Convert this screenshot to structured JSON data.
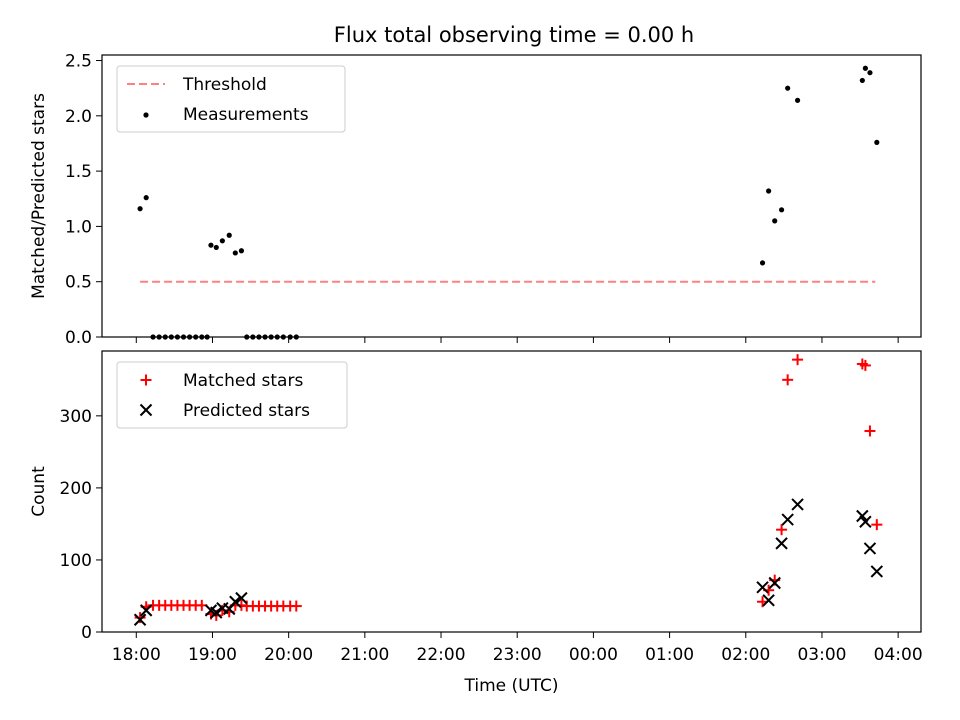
{
  "title": "Flux total observing time = 0.00 h",
  "chart_data": [
    {
      "type": "scatter",
      "panel": "top",
      "title": "Flux total observing time = 0.00 h",
      "xlabel": "",
      "ylabel": "Matched/Predicted stars",
      "xlim": [
        17.55,
        28.3
      ],
      "ylim": [
        0,
        2.55
      ],
      "yticks": [
        0.0,
        0.5,
        1.0,
        1.5,
        2.0,
        2.5
      ],
      "ytick_labels": [
        "0.0",
        "0.5",
        "1.0",
        "1.5",
        "2.0",
        "2.5"
      ],
      "legend_position": "top-left",
      "legend": [
        "Threshold",
        "Measurements"
      ],
      "series": [
        {
          "name": "Threshold",
          "kind": "dashed-line",
          "color": "#ff8080",
          "x": [
            18.05,
            27.7
          ],
          "y": [
            0.5,
            0.5
          ]
        },
        {
          "name": "Measurements",
          "kind": "points",
          "color": "#000000",
          "x": [
            18.05,
            18.13,
            18.22,
            18.3,
            18.38,
            18.46,
            18.54,
            18.62,
            18.7,
            18.78,
            18.86,
            18.93,
            18.98,
            19.05,
            19.13,
            19.22,
            19.3,
            19.38,
            19.45,
            19.53,
            19.61,
            19.69,
            19.77,
            19.85,
            19.93,
            20.02,
            20.1,
            26.22,
            26.3,
            26.38,
            26.47,
            26.55,
            26.68,
            27.53,
            27.57,
            27.63,
            27.72
          ],
          "y": [
            1.16,
            1.26,
            0.0,
            0.0,
            0.0,
            0.0,
            0.0,
            0.0,
            0.0,
            0.0,
            0.0,
            0.0,
            0.83,
            0.81,
            0.87,
            0.92,
            0.76,
            0.78,
            0.0,
            0.0,
            0.0,
            0.0,
            0.0,
            0.0,
            0.0,
            0.0,
            0.0,
            0.67,
            1.32,
            1.05,
            1.15,
            2.25,
            2.14,
            2.32,
            2.43,
            2.39,
            1.76
          ]
        }
      ]
    },
    {
      "type": "scatter",
      "panel": "bottom",
      "xlabel": "Time (UTC)",
      "ylabel": "Count",
      "xlim": [
        17.55,
        28.3
      ],
      "ylim": [
        0,
        390
      ],
      "xticks": [
        18,
        19,
        20,
        21,
        22,
        23,
        24,
        25,
        26,
        27,
        28
      ],
      "xtick_labels": [
        "18:00",
        "19:00",
        "20:00",
        "21:00",
        "22:00",
        "23:00",
        "00:00",
        "01:00",
        "02:00",
        "03:00",
        "04:00"
      ],
      "yticks": [
        0,
        100,
        200,
        300
      ],
      "ytick_labels": [
        "0",
        "100",
        "200",
        "300"
      ],
      "legend_position": "top-left",
      "legend": [
        "Matched stars",
        "Predicted stars"
      ],
      "series": [
        {
          "name": "Matched stars",
          "marker": "plus",
          "color": "#ff0000",
          "x": [
            18.05,
            18.13,
            18.22,
            18.3,
            18.38,
            18.46,
            18.54,
            18.62,
            18.7,
            18.78,
            18.86,
            18.98,
            19.05,
            19.13,
            19.22,
            19.3,
            19.38,
            19.45,
            19.53,
            19.61,
            19.69,
            19.77,
            19.85,
            19.93,
            20.02,
            20.1,
            26.22,
            26.3,
            26.38,
            26.47,
            26.55,
            26.68,
            27.53,
            27.57,
            27.63,
            27.72
          ],
          "y": [
            20,
            35,
            37,
            37,
            37,
            37,
            37,
            37,
            37,
            37,
            37,
            25,
            23,
            30,
            28,
            37,
            37,
            36,
            36,
            36,
            36,
            36,
            36,
            36,
            36,
            36,
            42,
            58,
            72,
            142,
            350,
            378,
            372,
            370,
            279,
            149
          ]
        },
        {
          "name": "Predicted stars",
          "marker": "x",
          "color": "#000000",
          "x": [
            18.05,
            18.13,
            18.98,
            19.05,
            19.13,
            19.22,
            19.3,
            19.38,
            26.22,
            26.3,
            26.38,
            26.47,
            26.55,
            26.68,
            27.53,
            27.57,
            27.63,
            27.72
          ],
          "y": [
            17,
            30,
            30,
            27,
            33,
            32,
            42,
            47,
            62,
            44,
            68,
            123,
            156,
            177,
            161,
            153,
            116,
            84
          ]
        }
      ]
    }
  ]
}
